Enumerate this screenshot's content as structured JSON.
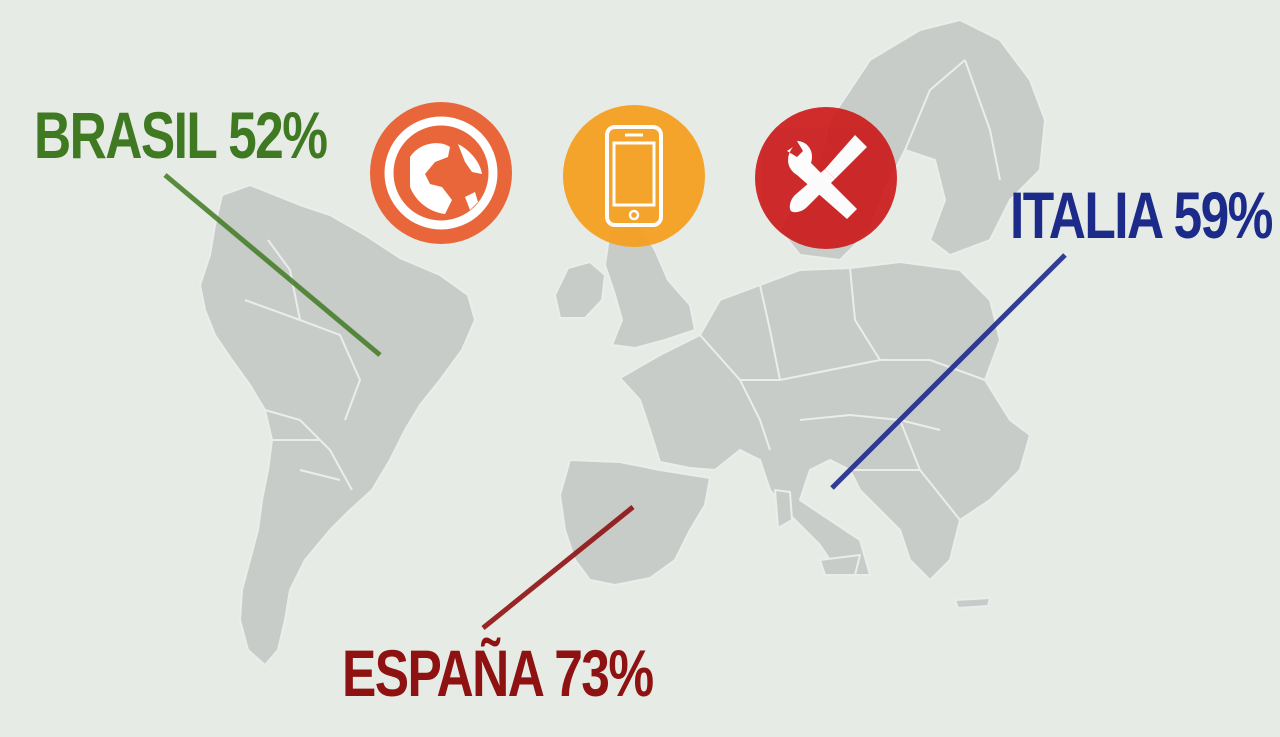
{
  "labels": {
    "brasil": {
      "text": "BRASIL 52%",
      "country": "BRASIL",
      "value": 52,
      "color": "#3f7a22"
    },
    "italia": {
      "text": "ITALIA 59%",
      "country": "ITALIA",
      "value": 59,
      "color": "#1c2a8a"
    },
    "espana": {
      "text": "ESPAÑA 73%",
      "country": "ESPAÑA",
      "value": 73,
      "color": "#8e1212"
    }
  },
  "icons": [
    {
      "name": "globe-icon",
      "color": "#e8663a"
    },
    {
      "name": "smartphone-icon",
      "color": "#f5a022"
    },
    {
      "name": "tools-icon",
      "color": "#cc1d1d"
    }
  ],
  "colors": {
    "background": "#e6ebe5",
    "land": "#c8ccc8"
  }
}
